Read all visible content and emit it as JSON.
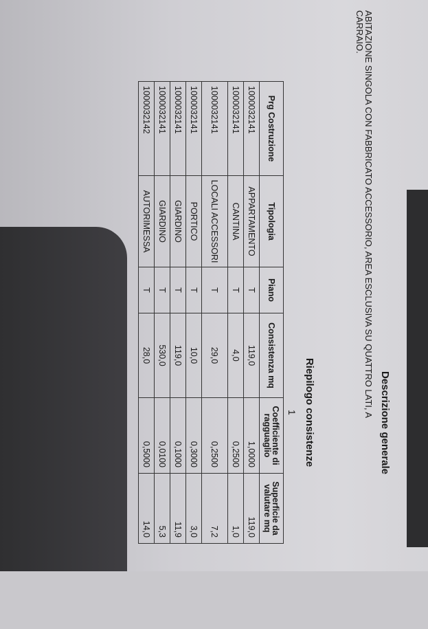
{
  "document": {
    "section_title": "Descrizione generale",
    "description_line1": "ABITAZIONE SINGOLA CON FABBRICATO ACCESSORIO, AREA ESCLUSIVA SU QUATTRO LATI, A",
    "description_line2": "CARRAIO.",
    "table_title": "Riepilogo consistenze",
    "page_number": "1",
    "table": {
      "headers": [
        "Prg Costruzione",
        "Tipologia",
        "Piano",
        "Consistenza mq",
        "Coefficiente di ragguaglio",
        "Superficie da valutare mq"
      ],
      "rows": [
        [
          "1000032141",
          "APPARTAMENTO",
          "T",
          "119,0",
          "1,0000",
          "119,0"
        ],
        [
          "1000032141",
          "CANTINA",
          "T",
          "4,0",
          "0,2500",
          "1,0"
        ],
        [
          "1000032141",
          "LOCALI ACCESSORI",
          "T",
          "29,0",
          "0,2500",
          "7,2"
        ],
        [
          "1000032141",
          "PORTICO",
          "T",
          "10,0",
          "0,3000",
          "3,0"
        ],
        [
          "1000032141",
          "GIARDINO",
          "T",
          "119,0",
          "0,1000",
          "11,9"
        ],
        [
          "1000032141",
          "GIARDINO",
          "T",
          "530,0",
          "0,0100",
          "5,3"
        ],
        [
          "1000032142",
          "AUTORIMESSA",
          "T",
          "28,0",
          "0,5000",
          "14,0"
        ]
      ]
    }
  }
}
